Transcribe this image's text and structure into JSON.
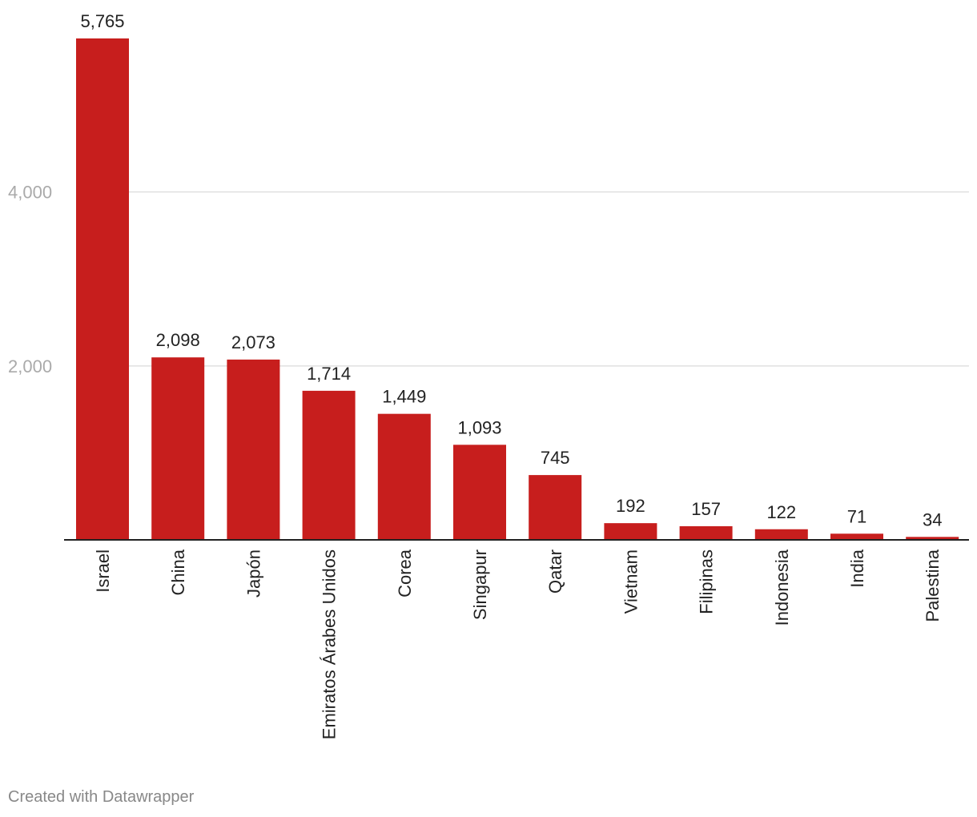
{
  "chart_data": {
    "type": "bar",
    "categories": [
      "Israel",
      "China",
      "Japón",
      "Emiratos Árabes Unidos",
      "Corea",
      "Singapur",
      "Qatar",
      "Vietnam",
      "Filipinas",
      "Indonesia",
      "India",
      "Palestina"
    ],
    "values": [
      5765,
      2098,
      2073,
      1714,
      1449,
      1093,
      745,
      192,
      157,
      122,
      71,
      34
    ],
    "value_labels": [
      "5,765",
      "2,098",
      "2,073",
      "1,714",
      "1,449",
      "1,093",
      "745",
      "192",
      "157",
      "122",
      "71",
      "34"
    ],
    "y_ticks": [
      2000,
      4000
    ],
    "y_tick_labels": [
      "2,000",
      "4,000"
    ],
    "ylim": [
      0,
      5765
    ],
    "grid": true,
    "bar_color": "#c71e1d",
    "title": "",
    "xlabel": "",
    "ylabel": ""
  },
  "footer": {
    "credit": "Created with Datawrapper"
  }
}
